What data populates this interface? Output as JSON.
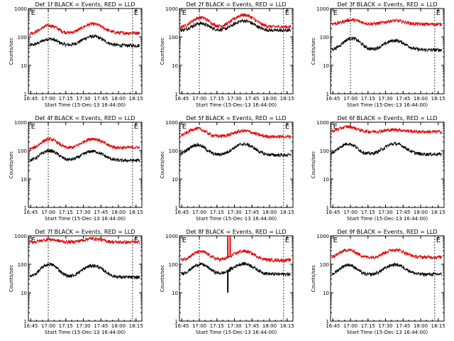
{
  "chart_data": [
    {
      "type": "line",
      "title": "Det 1f BLACK = Events, RED = LLD",
      "xlabel": "Start Time (15-Dec-13 16:44:00)",
      "ylabel": "Counts/sec",
      "yscale": "log",
      "ylim": [
        1,
        1000
      ],
      "xlim_minutes": [
        -1,
        96
      ],
      "x_tick_labels": [
        "16:45",
        "17:00",
        "17:15",
        "17:30",
        "17:45",
        "18:00",
        "18:15"
      ],
      "y_tick_labels": [
        "1",
        "10",
        "100",
        "1000"
      ],
      "event_marker_label": "E",
      "event_lines_minutes": [
        16,
        88
      ],
      "event_label_minutes": [
        0,
        88
      ],
      "series": [
        {
          "name": "Events",
          "color": "#000000",
          "base": 50,
          "peak1": {
            "center": 17,
            "amp": 35
          },
          "peak2": {
            "center": 54,
            "amp": 55
          },
          "end": 50
        },
        {
          "name": "LLD",
          "color": "#e00000",
          "base": 130,
          "peak1": {
            "center": 17,
            "amp": 120
          },
          "peak2": {
            "center": 54,
            "amp": 150
          },
          "end": 140
        }
      ]
    },
    {
      "type": "line",
      "title": "Det 2f BLACK = Events, RED = LLD",
      "xlabel": "Start Time (15-Dec-13 16:44:00)",
      "ylabel": "Counts/sec",
      "yscale": "log",
      "ylim": [
        1,
        1000
      ],
      "xlim_minutes": [
        -1,
        96
      ],
      "x_tick_labels": [
        "16:45",
        "17:00",
        "17:15",
        "17:30",
        "17:45",
        "18:00",
        "18:15"
      ],
      "y_tick_labels": [
        "1",
        "10",
        "100",
        "1000"
      ],
      "event_marker_label": "E",
      "event_lines_minutes": [
        16,
        88
      ],
      "event_label_minutes": [
        0,
        88
      ],
      "series": [
        {
          "name": "Events",
          "color": "#000000",
          "base": 170,
          "peak1": {
            "center": 17,
            "amp": 130
          },
          "peak2": {
            "center": 54,
            "amp": 200
          },
          "end": 170
        },
        {
          "name": "LLD",
          "color": "#e00000",
          "base": 220,
          "peak1": {
            "center": 17,
            "amp": 260
          },
          "peak2": {
            "center": 54,
            "amp": 370
          },
          "end": 230
        }
      ]
    },
    {
      "type": "line",
      "title": "Det 3f BLACK = Events, RED = LLD",
      "xlabel": "Start Time (15-Dec-13 16:44:00)",
      "ylabel": "Counts/sec",
      "yscale": "log",
      "ylim": [
        1,
        1000
      ],
      "xlim_minutes": [
        -1,
        96
      ],
      "x_tick_labels": [
        "16:45",
        "17:00",
        "17:15",
        "17:30",
        "17:45",
        "18:00",
        "18:15"
      ],
      "y_tick_labels": [
        "1",
        "10",
        "100",
        "1000"
      ],
      "event_marker_label": "E",
      "event_lines_minutes": [
        16,
        88
      ],
      "event_label_minutes": [
        0,
        88
      ],
      "series": [
        {
          "name": "Events",
          "color": "#000000",
          "base": 35,
          "peak1": {
            "center": 17,
            "amp": 55
          },
          "peak2": {
            "center": 54,
            "amp": 40
          },
          "end": 35
        },
        {
          "name": "LLD",
          "color": "#e00000",
          "base": 290,
          "peak1": {
            "center": 17,
            "amp": 110
          },
          "peak2": {
            "center": 54,
            "amp": 90
          },
          "end": 280
        }
      ]
    },
    {
      "type": "line",
      "title": "Det 4f BLACK = Events, RED = LLD",
      "xlabel": "Start Time (15-Dec-13 16:44:00)",
      "ylabel": "Counts/sec",
      "yscale": "log",
      "ylim": [
        1,
        1000
      ],
      "xlim_minutes": [
        -1,
        96
      ],
      "x_tick_labels": [
        "16:45",
        "17:00",
        "17:15",
        "17:30",
        "17:45",
        "18:00",
        "18:15"
      ],
      "y_tick_labels": [
        "1",
        "10",
        "100",
        "1000"
      ],
      "event_marker_label": "E",
      "event_lines_minutes": [
        16,
        88
      ],
      "event_label_minutes": [
        0,
        88
      ],
      "series": [
        {
          "name": "Events",
          "color": "#000000",
          "base": 45,
          "peak1": {
            "center": 17,
            "amp": 55
          },
          "peak2": {
            "center": 54,
            "amp": 50
          },
          "end": 45
        },
        {
          "name": "LLD",
          "color": "#e00000",
          "base": 110,
          "peak1": {
            "center": 17,
            "amp": 140
          },
          "peak2": {
            "center": 54,
            "amp": 140
          },
          "end": 130
        }
      ]
    },
    {
      "type": "line",
      "title": "Det 5f BLACK = Events, RED = LLD",
      "xlabel": "Start Time (15-Dec-13 16:44:00)",
      "ylabel": "Counts/sec",
      "yscale": "log",
      "ylim": [
        1,
        1000
      ],
      "xlim_minutes": [
        -1,
        96
      ],
      "x_tick_labels": [
        "16:45",
        "17:00",
        "17:15",
        "17:30",
        "17:45",
        "18:00",
        "18:15"
      ],
      "y_tick_labels": [
        "1",
        "10",
        "100",
        "1000"
      ],
      "event_marker_label": "E",
      "event_lines_minutes": [
        88
      ],
      "event_label_minutes": [
        0,
        88
      ],
      "series": [
        {
          "name": "Events",
          "color": "#000000",
          "base": 70,
          "peak1": {
            "center": 14,
            "amp": 90
          },
          "peak2": {
            "center": 54,
            "amp": 100
          },
          "end": 70
        },
        {
          "name": "LLD",
          "color": "#e00000",
          "base": 320,
          "peak1": {
            "center": 14,
            "amp": 280
          },
          "peak2": {
            "center": 54,
            "amp": 180
          },
          "end": 310
        }
      ]
    },
    {
      "type": "line",
      "title": "Det 6f BLACK = Events, RED = LLD",
      "xlabel": "Start Time (15-Dec-13 16:44:00)",
      "ylabel": "Counts/sec",
      "yscale": "log",
      "ylim": [
        1,
        1000
      ],
      "xlim_minutes": [
        -1,
        96
      ],
      "x_tick_labels": [
        "16:45",
        "17:00",
        "17:15",
        "17:30",
        "17:45",
        "18:00",
        "18:15"
      ],
      "y_tick_labels": [
        "1",
        "10",
        "100",
        "1000"
      ],
      "event_marker_label": "E",
      "event_lines_minutes": [],
      "event_label_minutes": [
        0
      ],
      "series": [
        {
          "name": "Events",
          "color": "#000000",
          "base": 75,
          "peak1": {
            "center": 14,
            "amp": 100
          },
          "peak2": {
            "center": 54,
            "amp": 100
          },
          "end": 75
        },
        {
          "name": "LLD",
          "color": "#e00000",
          "base": 470,
          "peak1": {
            "center": 14,
            "amp": 230
          },
          "peak2": {
            "center": 54,
            "amp": 80
          },
          "end": 460
        }
      ]
    },
    {
      "type": "line",
      "title": "Det 7f BLACK = Events, RED = LLD",
      "xlabel": "Start Time (15-Dec-13 16:44:00)",
      "ylabel": "Counts/sec",
      "yscale": "log",
      "ylim": [
        1,
        1000
      ],
      "xlim_minutes": [
        -1,
        96
      ],
      "x_tick_labels": [
        "16:45",
        "17:00",
        "17:15",
        "17:30",
        "17:45",
        "18:00",
        "18:15"
      ],
      "y_tick_labels": [
        "1",
        "10",
        "100",
        "1000"
      ],
      "event_marker_label": "E",
      "event_lines_minutes": [
        16,
        88
      ],
      "event_label_minutes": [
        0,
        88
      ],
      "series": [
        {
          "name": "Events",
          "color": "#000000",
          "base": 35,
          "peak1": {
            "center": 17,
            "amp": 65
          },
          "peak2": {
            "center": 54,
            "amp": 55
          },
          "end": 35
        },
        {
          "name": "LLD",
          "color": "#e00000",
          "base": 600,
          "peak1": {
            "center": 17,
            "amp": 150
          },
          "peak2": {
            "center": 54,
            "amp": 200
          },
          "end": 600
        }
      ]
    },
    {
      "type": "line",
      "title": "Det 8f BLACK = Events, RED = LLD",
      "xlabel": "Start Time (15-Dec-13 16:44:00)",
      "ylabel": "Counts/sec",
      "yscale": "log",
      "ylim": [
        1,
        1000
      ],
      "xlim_minutes": [
        -1,
        96
      ],
      "x_tick_labels": [
        "16:45",
        "17:00",
        "17:15",
        "17:30",
        "17:45",
        "18:00",
        "18:15"
      ],
      "y_tick_labels": [
        "1",
        "10",
        "100",
        "1000"
      ],
      "event_marker_label": "E",
      "event_lines_minutes": [
        16,
        88
      ],
      "event_label_minutes": [
        0,
        88
      ],
      "series": [
        {
          "name": "Events",
          "color": "#000000",
          "base": 45,
          "peak1": {
            "center": 17,
            "amp": 55
          },
          "peak2": {
            "center": 54,
            "amp": 60
          },
          "end": 45,
          "spikes": [
            {
              "at": 40,
              "to": 10
            },
            {
              "at": 42,
              "to": 80
            }
          ]
        },
        {
          "name": "LLD",
          "color": "#e00000",
          "base": 140,
          "peak1": {
            "center": 17,
            "amp": 140
          },
          "peak2": {
            "center": 54,
            "amp": 150
          },
          "end": 140,
          "spikes": [
            {
              "at": 40,
              "to": 1000
            },
            {
              "at": 42,
              "to": 1000
            }
          ]
        }
      ]
    },
    {
      "type": "line",
      "title": "Det 9f BLACK = Events, RED = LLD",
      "xlabel": "Start Time (15-Dec-13 16:44:00)",
      "ylabel": "Counts/sec",
      "yscale": "log",
      "ylim": [
        1,
        1000
      ],
      "xlim_minutes": [
        -1,
        96
      ],
      "x_tick_labels": [
        "16:45",
        "17:00",
        "17:15",
        "17:30",
        "17:45",
        "18:00",
        "18:15"
      ],
      "y_tick_labels": [
        "1",
        "10",
        "100",
        "1000"
      ],
      "event_marker_label": "E",
      "event_lines_minutes": [
        88
      ],
      "event_label_minutes": [
        0,
        88
      ],
      "series": [
        {
          "name": "Events",
          "color": "#000000",
          "base": 40,
          "peak1": {
            "center": 14,
            "amp": 55
          },
          "peak2": {
            "center": 54,
            "amp": 55
          },
          "end": 45
        },
        {
          "name": "LLD",
          "color": "#e00000",
          "base": 170,
          "peak1": {
            "center": 14,
            "amp": 150
          },
          "peak2": {
            "center": 54,
            "amp": 150
          },
          "end": 180
        }
      ]
    }
  ]
}
